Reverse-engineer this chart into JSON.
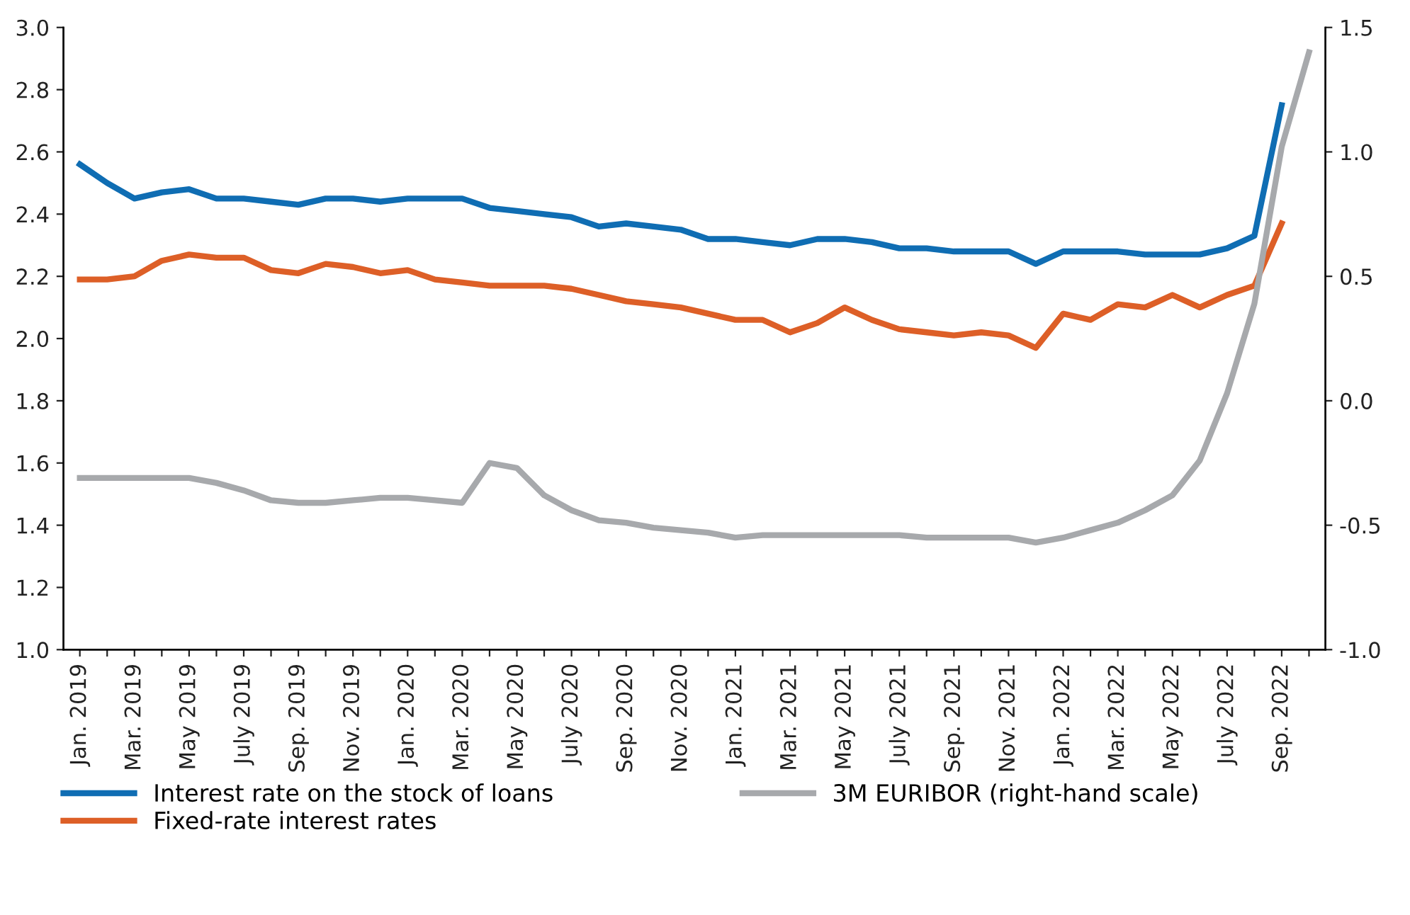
{
  "chart_data": {
    "type": "line",
    "categories": [
      "Jan. 2019",
      null,
      "Mar. 2019",
      null,
      "May 2019",
      null,
      "July 2019",
      null,
      "Sep. 2019",
      null,
      "Nov. 2019",
      null,
      "Jan. 2020",
      null,
      "Mar. 2020",
      null,
      "May 2020",
      null,
      "July 2020",
      null,
      "Sep. 2020",
      null,
      "Nov. 2020",
      null,
      "Jan. 2021",
      null,
      "Mar. 2021",
      null,
      "May 2021",
      null,
      "July 2021",
      null,
      "Sep. 2021",
      null,
      "Nov. 2021",
      null,
      "Jan. 2022",
      null,
      "Mar. 2022",
      null,
      "May 2022",
      null,
      "July 2022",
      null,
      "Sep. 2022",
      null
    ],
    "series": [
      {
        "name": "Interest rate on the stock of loans",
        "color": "#0f6db3",
        "values": [
          2.56,
          2.5,
          2.45,
          2.47,
          2.48,
          2.45,
          2.45,
          2.44,
          2.43,
          2.45,
          2.45,
          2.44,
          2.45,
          2.45,
          2.45,
          2.42,
          2.41,
          2.4,
          2.39,
          2.36,
          2.37,
          2.36,
          2.35,
          2.32,
          2.32,
          2.31,
          2.3,
          2.32,
          2.32,
          2.31,
          2.29,
          2.29,
          2.28,
          2.28,
          2.28,
          2.24,
          2.28,
          2.28,
          2.28,
          2.27,
          2.27,
          2.27,
          2.29,
          2.33,
          2.75,
          null
        ]
      },
      {
        "name": "Fixed-rate interest rates",
        "color": "#dd5f27",
        "values": [
          2.19,
          2.19,
          2.2,
          2.25,
          2.27,
          2.26,
          2.26,
          2.22,
          2.21,
          2.24,
          2.23,
          2.21,
          2.22,
          2.19,
          2.18,
          2.17,
          2.17,
          2.17,
          2.16,
          2.14,
          2.12,
          2.11,
          2.1,
          2.08,
          2.06,
          2.06,
          2.02,
          2.05,
          2.1,
          2.06,
          2.03,
          2.02,
          2.01,
          2.02,
          2.01,
          1.97,
          2.08,
          2.06,
          2.11,
          2.1,
          2.14,
          2.1,
          2.14,
          2.17,
          2.37,
          null
        ]
      },
      {
        "name": "3M EURIBOR (right-hand scale)",
        "color": "#a7a9ac",
        "axis": "y2",
        "values": [
          -0.31,
          -0.31,
          -0.31,
          -0.31,
          -0.31,
          -0.33,
          -0.36,
          -0.4,
          -0.41,
          -0.41,
          -0.4,
          -0.39,
          -0.39,
          -0.4,
          -0.41,
          -0.25,
          -0.27,
          -0.38,
          -0.44,
          -0.48,
          -0.49,
          -0.51,
          -0.52,
          -0.53,
          -0.55,
          -0.54,
          -0.54,
          -0.54,
          -0.54,
          -0.54,
          -0.54,
          -0.55,
          -0.55,
          -0.55,
          -0.55,
          -0.57,
          -0.55,
          -0.52,
          -0.49,
          -0.44,
          -0.38,
          -0.24,
          0.03,
          0.39,
          1.02,
          1.4
        ]
      }
    ],
    "ylim": [
      1.0,
      3.0
    ],
    "yticks": [
      {
        "value": 1.0,
        "label": "1.0"
      },
      {
        "value": 1.2,
        "label": "1.2"
      },
      {
        "value": 1.4,
        "label": "1.4"
      },
      {
        "value": 1.6,
        "label": "1.6"
      },
      {
        "value": 1.8,
        "label": "1.8"
      },
      {
        "value": 2.0,
        "label": "2.0"
      },
      {
        "value": 2.2,
        "label": "2.2"
      },
      {
        "value": 2.4,
        "label": "2.4"
      },
      {
        "value": 2.6,
        "label": "2.6"
      },
      {
        "value": 2.8,
        "label": "2.8"
      },
      {
        "value": 3.0,
        "label": "3.0"
      }
    ],
    "y2lim": [
      -1.0,
      1.5
    ],
    "y2ticks": [
      {
        "value": -1.0,
        "label": "-1.0"
      },
      {
        "value": -0.5,
        "label": "-0.5"
      },
      {
        "value": 0.0,
        "label": "0.0"
      },
      {
        "value": 0.5,
        "label": "0.5"
      },
      {
        "value": 1.0,
        "label": "1.0"
      },
      {
        "value": 1.5,
        "label": "1.5"
      }
    ],
    "legend": "bottom",
    "grid": false,
    "marker": "none",
    "line_style": "solid"
  }
}
